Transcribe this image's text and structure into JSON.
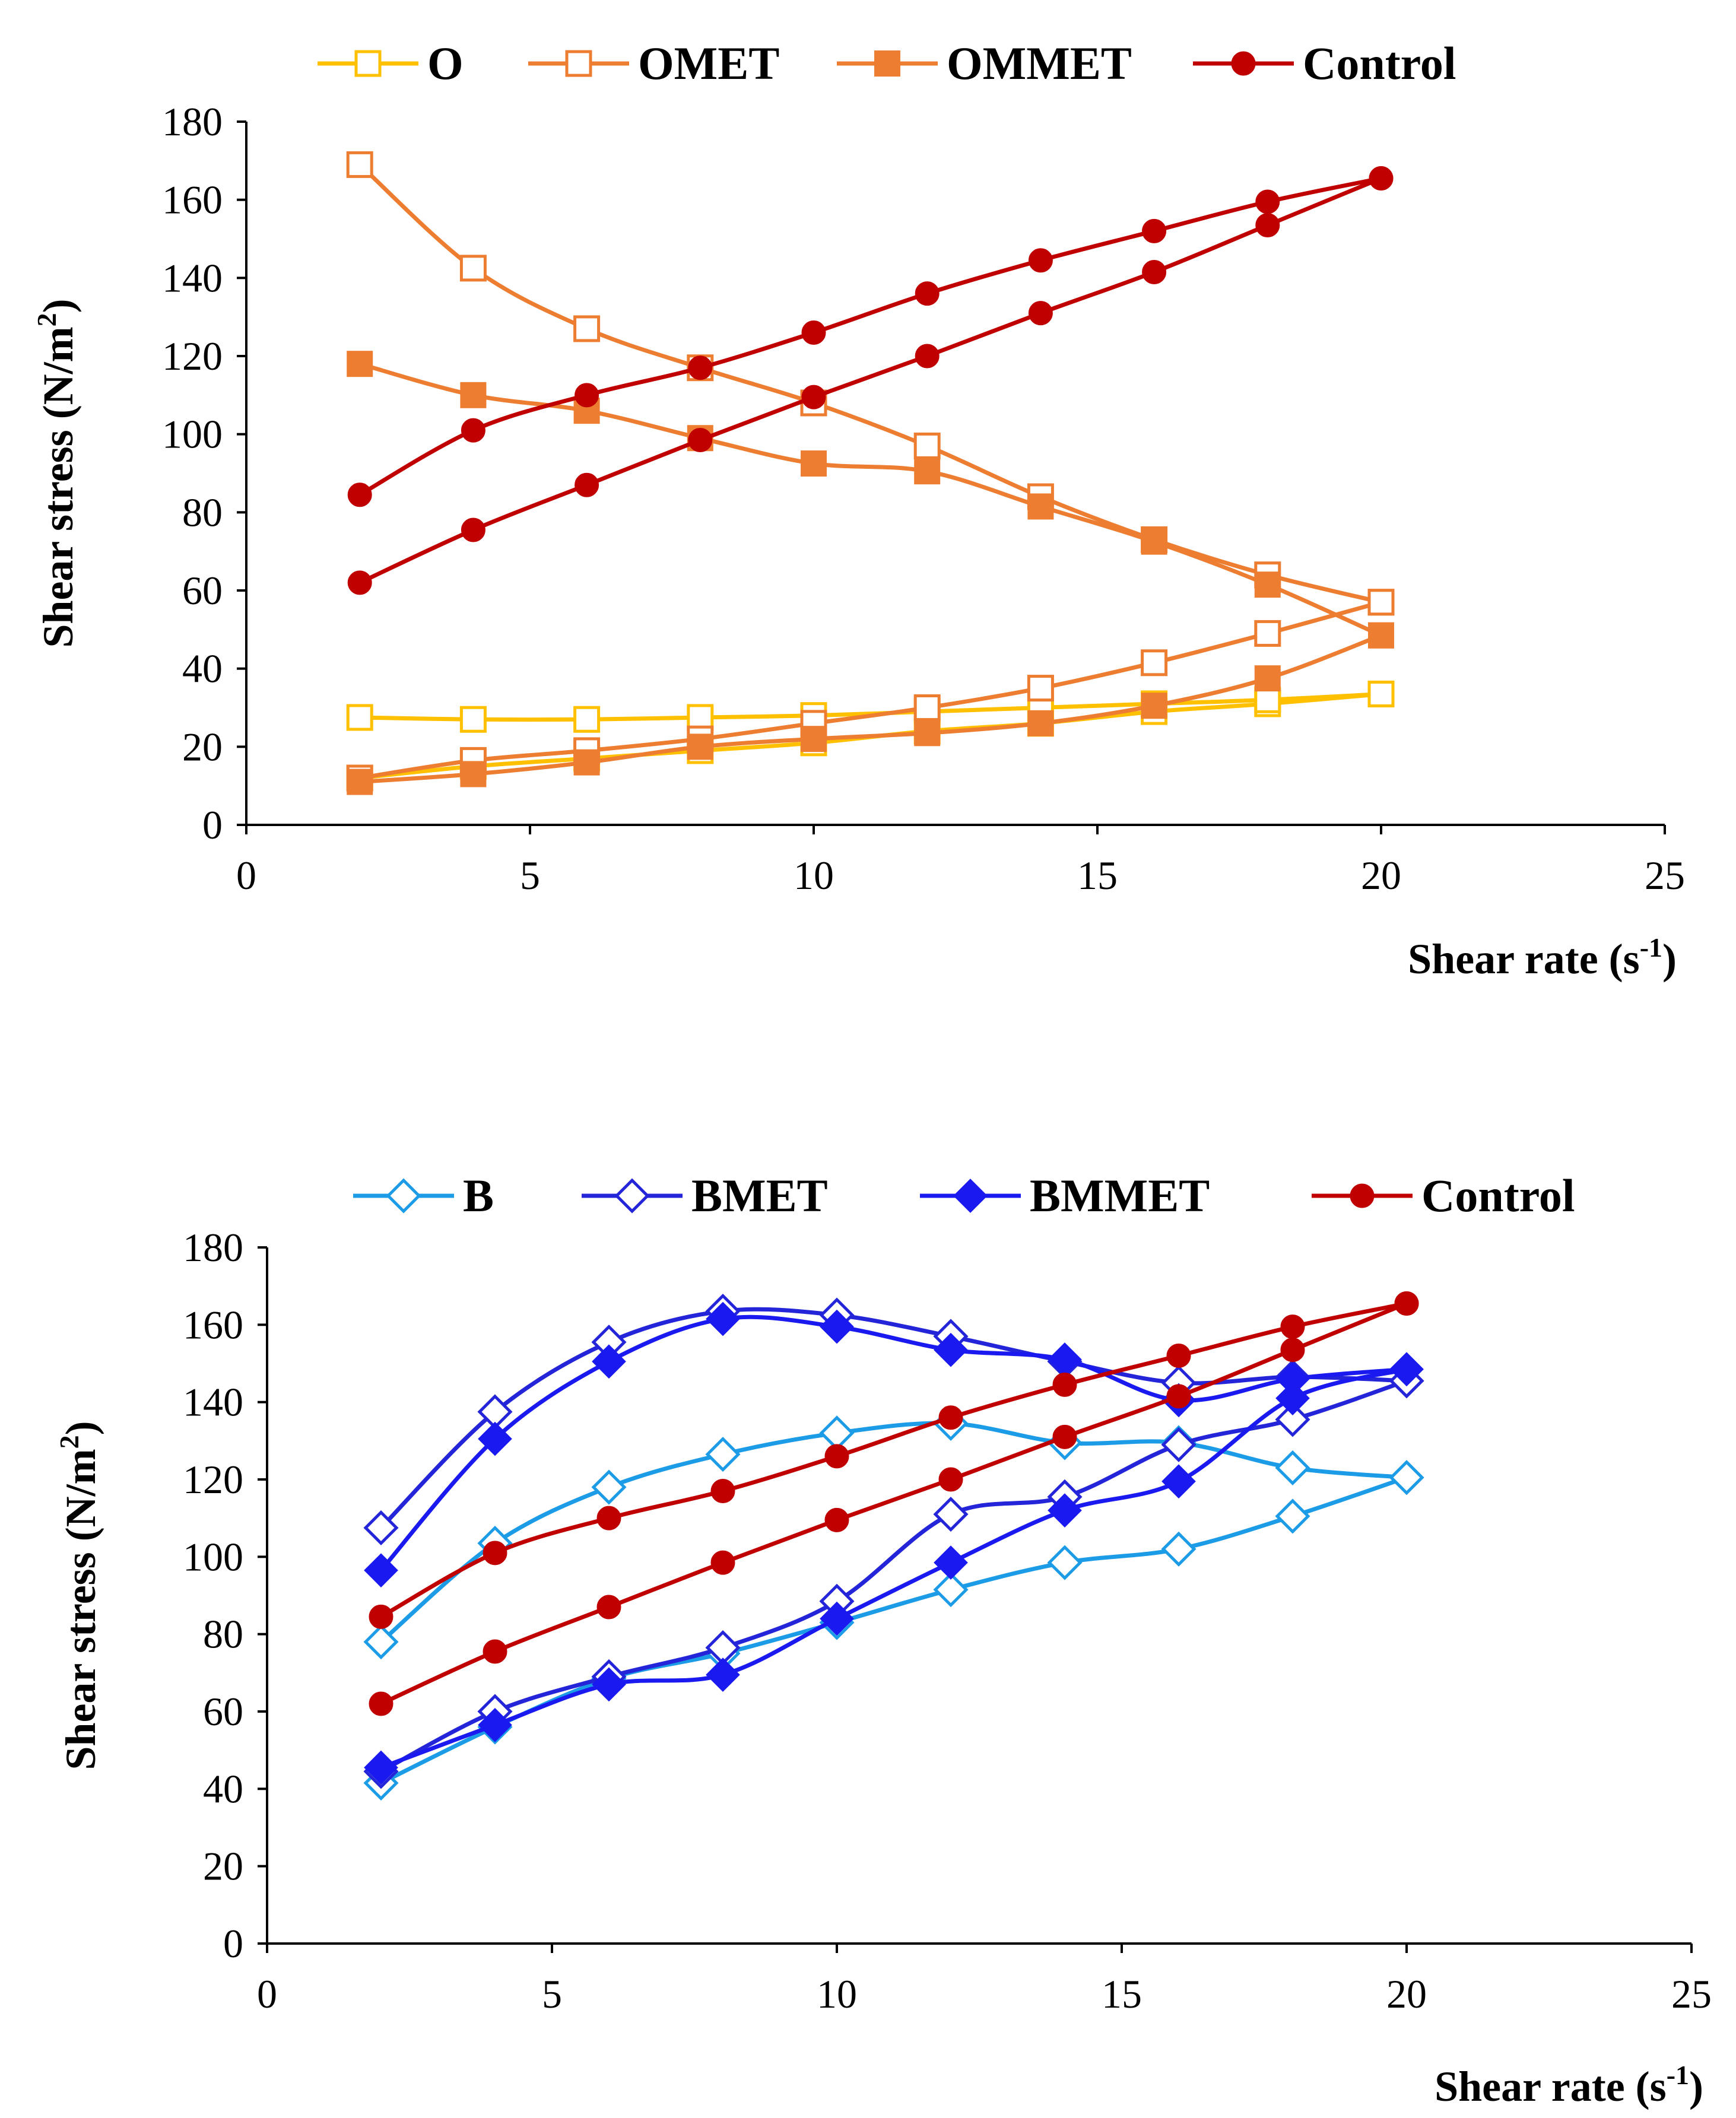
{
  "chart_data": [
    {
      "type": "scatter",
      "xlabel": "Shear rate (s",
      "xlabel_sup": "-1",
      "xlabel_end": ")",
      "ylabel": "Shear stress (N/m",
      "ylabel_sup": "2",
      "ylabel_end": ")",
      "xlim": [
        0,
        25
      ],
      "ylim": [
        0,
        180
      ],
      "x_ticks": [
        0,
        5,
        10,
        15,
        20,
        25
      ],
      "y_ticks": [
        0,
        20,
        40,
        60,
        80,
        100,
        120,
        140,
        160,
        180
      ],
      "grid": false,
      "legend_position": "top",
      "series": [
        {
          "name": "O",
          "color": "#FFC000",
          "marker": "square-open",
          "up_x": [
            2,
            4,
            6,
            8,
            10,
            12,
            14,
            16,
            18,
            20
          ],
          "up_y": [
            12,
            15,
            17,
            19,
            21,
            24,
            26,
            29,
            31,
            33.5
          ],
          "down_x": [
            20,
            18,
            16,
            14,
            12,
            10,
            8,
            6,
            4,
            2
          ],
          "down_y": [
            33.5,
            32,
            31,
            30,
            29,
            28,
            27.5,
            27,
            27,
            27.5
          ]
        },
        {
          "name": "OMET",
          "color": "#ED7D31",
          "marker": "square-open",
          "up_x": [
            2,
            4,
            6,
            8,
            10,
            12,
            14,
            16,
            18,
            20
          ],
          "up_y": [
            12,
            16.5,
            19,
            22,
            26,
            30,
            35,
            41.5,
            49,
            57
          ],
          "down_x": [
            20,
            18,
            16,
            14,
            12,
            10,
            8,
            6,
            4,
            2
          ],
          "down_y": [
            57,
            64,
            73,
            84,
            97,
            108,
            117,
            127,
            142.5,
            169
          ]
        },
        {
          "name": "OMMET",
          "color": "#ED7D31",
          "marker": "square-filled",
          "up_x": [
            2,
            4,
            6,
            8,
            10,
            12,
            14,
            16,
            18,
            20
          ],
          "up_y": [
            11,
            13,
            16,
            20,
            22,
            23.5,
            26,
            30.5,
            37.5,
            48.5
          ],
          "down_x": [
            20,
            18,
            16,
            14,
            12,
            10,
            8,
            6,
            4,
            2
          ],
          "down_y": [
            48.5,
            61.5,
            72.5,
            81.5,
            90.5,
            92.5,
            99,
            106,
            110,
            118
          ]
        },
        {
          "name": "Control",
          "color": "#C00000",
          "marker": "circle-filled",
          "up_x": [
            2,
            4,
            6,
            8,
            10,
            12,
            14,
            16,
            18,
            20
          ],
          "up_y": [
            62,
            75.5,
            87,
            98.5,
            109.5,
            120,
            131,
            141.5,
            153.5,
            165.5
          ],
          "down_x": [
            20,
            18,
            16,
            14,
            12,
            10,
            8,
            6,
            4,
            2
          ],
          "down_y": [
            165.5,
            159.5,
            152,
            144.5,
            136,
            126,
            117,
            110,
            101,
            84.5
          ]
        }
      ]
    },
    {
      "type": "scatter",
      "xlabel": "Shear rate (s",
      "xlabel_sup": "-1",
      "xlabel_end": ")",
      "ylabel": "Shear stress (N/m",
      "ylabel_sup": "2",
      "ylabel_end": ")",
      "xlim": [
        0,
        25
      ],
      "ylim": [
        0,
        180
      ],
      "x_ticks": [
        0,
        5,
        10,
        15,
        20,
        25
      ],
      "y_ticks": [
        0,
        20,
        40,
        60,
        80,
        100,
        120,
        140,
        160,
        180
      ],
      "grid": false,
      "legend_position": "top",
      "series": [
        {
          "name": "B",
          "color": "#1C9BE6",
          "marker": "diamond-open",
          "up_x": [
            2,
            4,
            6,
            8,
            10,
            12,
            14,
            16,
            18,
            20
          ],
          "up_y": [
            41.5,
            56,
            68.5,
            75,
            83,
            91.5,
            98.5,
            102,
            110.5,
            120.5
          ],
          "down_x": [
            20,
            18,
            16,
            14,
            12,
            10,
            8,
            6,
            4,
            2
          ],
          "down_y": [
            120.5,
            123,
            129.5,
            129.5,
            134.5,
            132,
            126.5,
            118,
            103.5,
            78
          ]
        },
        {
          "name": "BMET",
          "color": "#2424D8",
          "marker": "diamond-open",
          "up_x": [
            2,
            4,
            6,
            8,
            10,
            12,
            14,
            16,
            18,
            20
          ],
          "up_y": [
            44.5,
            60,
            69,
            76.5,
            88.5,
            111,
            115.5,
            129,
            135.5,
            145.5
          ],
          "down_x": [
            20,
            18,
            16,
            14,
            12,
            10,
            8,
            6,
            4,
            2
          ],
          "down_y": [
            145.5,
            146.5,
            145,
            150.5,
            157,
            162.5,
            163.5,
            155.5,
            137.5,
            107.5
          ]
        },
        {
          "name": "BMMET",
          "color": "#1A1AF0",
          "marker": "diamond-filled",
          "up_x": [
            2,
            4,
            6,
            8,
            10,
            12,
            14,
            16,
            18,
            20
          ],
          "up_y": [
            45.5,
            56.5,
            67,
            69.5,
            84,
            98.5,
            112,
            119.5,
            141,
            148.5
          ],
          "down_x": [
            20,
            18,
            16,
            14,
            12,
            10,
            8,
            6,
            4,
            2
          ],
          "down_y": [
            148.5,
            146,
            140.5,
            151,
            153.5,
            159.5,
            161.5,
            150.5,
            130.5,
            96.5
          ]
        },
        {
          "name": "Control",
          "color": "#C00000",
          "marker": "circle-filled",
          "up_x": [
            2,
            4,
            6,
            8,
            10,
            12,
            14,
            16,
            18,
            20
          ],
          "up_y": [
            62,
            75.5,
            87,
            98.5,
            109.5,
            120,
            131,
            141.5,
            153.5,
            165.5
          ],
          "down_x": [
            20,
            18,
            16,
            14,
            12,
            10,
            8,
            6,
            4,
            2
          ],
          "down_y": [
            165.5,
            159.5,
            152,
            144.5,
            136,
            126,
            117,
            110,
            101,
            84.5
          ]
        }
      ]
    }
  ]
}
